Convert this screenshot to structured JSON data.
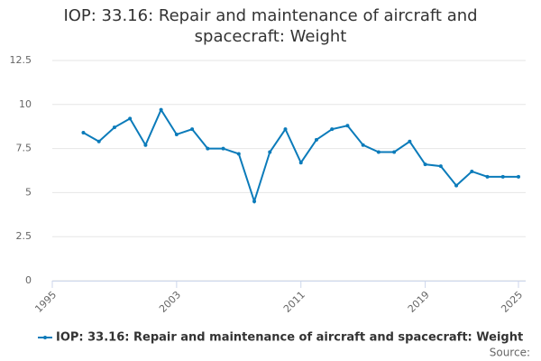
{
  "chart_data": {
    "type": "line",
    "title": "IOP: 33.16: Repair and maintenance of aircraft and spacecraft: Weight",
    "source": "Source:",
    "x": [
      1997,
      1998,
      1999,
      2000,
      2001,
      2002,
      2003,
      2004,
      2005,
      2006,
      2007,
      2008,
      2009,
      2010,
      2011,
      2012,
      2013,
      2014,
      2015,
      2016,
      2017,
      2018,
      2019,
      2020,
      2021,
      2022,
      2023,
      2024,
      2025
    ],
    "series": [
      {
        "name": "IOP: 33.16: Repair and maintenance of aircraft and spacecraft: Weight",
        "color": "#0b7bba",
        "values": [
          8.4,
          7.9,
          8.7,
          9.2,
          7.7,
          9.7,
          8.3,
          8.6,
          7.5,
          7.5,
          7.2,
          4.5,
          7.3,
          8.6,
          6.7,
          8.0,
          8.6,
          8.8,
          7.7,
          7.3,
          7.3,
          7.9,
          6.6,
          6.5,
          5.4,
          6.2,
          5.9,
          5.9,
          5.9
        ]
      }
    ],
    "xlim": [
      1995,
      2025
    ],
    "xticks": [
      1995,
      2003,
      2011,
      2019,
      2025
    ],
    "ylim": [
      0,
      12.5
    ],
    "yticks": [
      0,
      2.5,
      5,
      7.5,
      10,
      12.5
    ],
    "grid": true
  }
}
